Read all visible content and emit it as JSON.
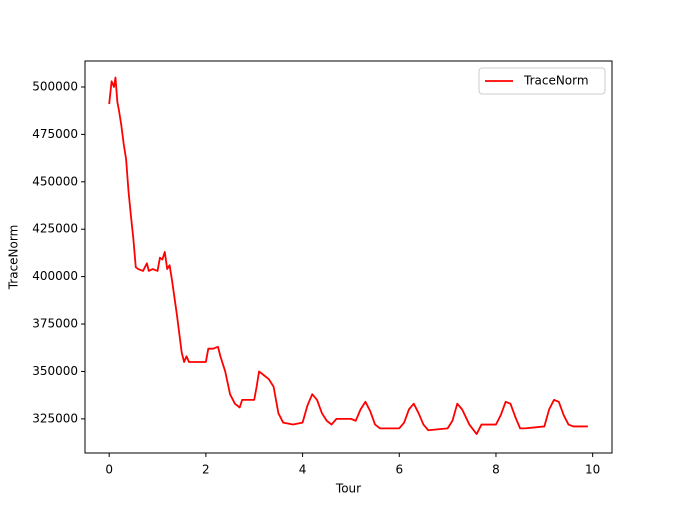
{
  "chart_data": {
    "type": "line",
    "xlabel": "Tour",
    "ylabel": "TraceNorm",
    "xlim": [
      -0.5,
      10.4
    ],
    "ylim": [
      307000,
      513700
    ],
    "xticks": [
      0,
      2,
      4,
      6,
      8,
      10
    ],
    "yticks": [
      325000,
      350000,
      375000,
      400000,
      425000,
      450000,
      475000,
      500000
    ],
    "grid": false,
    "legend": "upper right",
    "x": [
      0,
      0.05,
      0.1,
      0.13,
      0.17,
      0.2,
      0.25,
      0.3,
      0.35,
      0.4,
      0.45,
      0.5,
      0.55,
      0.6,
      0.7,
      0.78,
      0.82,
      0.9,
      1.0,
      1.05,
      1.1,
      1.15,
      1.2,
      1.25,
      1.3,
      1.4,
      1.45,
      1.5,
      1.55,
      1.6,
      1.65,
      1.8,
      2.0,
      2.05,
      2.15,
      2.25,
      2.3,
      2.4,
      2.5,
      2.6,
      2.7,
      2.75,
      3.0,
      3.05,
      3.1,
      3.2,
      3.3,
      3.4,
      3.5,
      3.6,
      3.8,
      4.0,
      4.1,
      4.2,
      4.3,
      4.4,
      4.5,
      4.6,
      4.7,
      5.0,
      5.1,
      5.2,
      5.3,
      5.4,
      5.5,
      5.6,
      6.0,
      6.1,
      6.2,
      6.3,
      6.4,
      6.5,
      6.6,
      7.0,
      7.1,
      7.2,
      7.3,
      7.45,
      7.6,
      7.7,
      8.0,
      8.1,
      8.2,
      8.3,
      8.4,
      8.5,
      8.6,
      9.0,
      9.1,
      9.2,
      9.3,
      9.4,
      9.5,
      9.6,
      9.9
    ],
    "series": [
      {
        "name": "TraceNorm",
        "color": "#ff0000",
        "values": [
          491000,
          503000,
          500000,
          505000,
          492000,
          488000,
          480000,
          470000,
          462000,
          445000,
          432000,
          420000,
          405000,
          404000,
          403000,
          407000,
          403000,
          404000,
          403000,
          410000,
          409000,
          413000,
          404000,
          406000,
          398000,
          380000,
          370000,
          360000,
          355000,
          358000,
          355000,
          355000,
          355000,
          362000,
          362000,
          363000,
          358000,
          350000,
          338000,
          333000,
          331000,
          335000,
          335000,
          342000,
          350000,
          348000,
          346000,
          342000,
          328000,
          323000,
          322000,
          323000,
          332000,
          338000,
          335000,
          328000,
          324000,
          322000,
          325000,
          325000,
          324000,
          330000,
          334000,
          329000,
          322000,
          320000,
          320000,
          323000,
          330000,
          333000,
          328000,
          322000,
          319000,
          320000,
          324000,
          333000,
          330000,
          322000,
          317000,
          322000,
          322000,
          327000,
          334000,
          333000,
          326000,
          320000,
          320000,
          321000,
          330000,
          335000,
          334000,
          327000,
          322000,
          321000,
          321000
        ]
      }
    ]
  }
}
